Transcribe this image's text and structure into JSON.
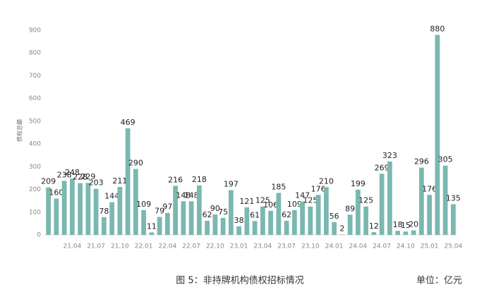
{
  "chart_data": {
    "type": "bar",
    "y_label": "债权总额",
    "caption": "图 5：非持牌机构债权招标情况",
    "unit": "单位：亿元",
    "color": "#7ab8b0",
    "categories": [
      null,
      null,
      null,
      "21.04",
      null,
      null,
      "21.07",
      null,
      null,
      "21.10",
      null,
      null,
      "22.01",
      null,
      null,
      "22.04",
      null,
      null,
      "22.07",
      null,
      null,
      "22.10",
      null,
      null,
      "23.01",
      null,
      null,
      "23.04",
      null,
      null,
      "23.07",
      null,
      null,
      "23.10",
      null,
      null,
      "24.01",
      null,
      null,
      "24.04",
      null,
      null,
      "24.07",
      null,
      null,
      "24.10",
      null,
      null,
      "25.01",
      null,
      null,
      "25.04"
    ],
    "values": [
      209,
      160,
      238,
      248,
      228,
      229,
      203,
      78,
      144,
      211,
      469,
      290,
      109,
      11,
      79,
      97,
      216,
      148,
      148,
      218,
      62,
      90,
      75,
      197,
      38,
      121,
      61,
      125,
      106,
      185,
      62,
      109,
      147,
      125,
      176,
      210,
      56,
      2,
      89,
      199,
      125,
      12,
      269,
      323,
      18,
      15,
      20,
      296,
      176,
      880,
      305,
      135
    ],
    "ylim": [
      0,
      900
    ],
    "yticks": [
      0,
      100,
      200,
      300,
      400,
      500,
      600,
      700,
      800,
      900
    ]
  }
}
